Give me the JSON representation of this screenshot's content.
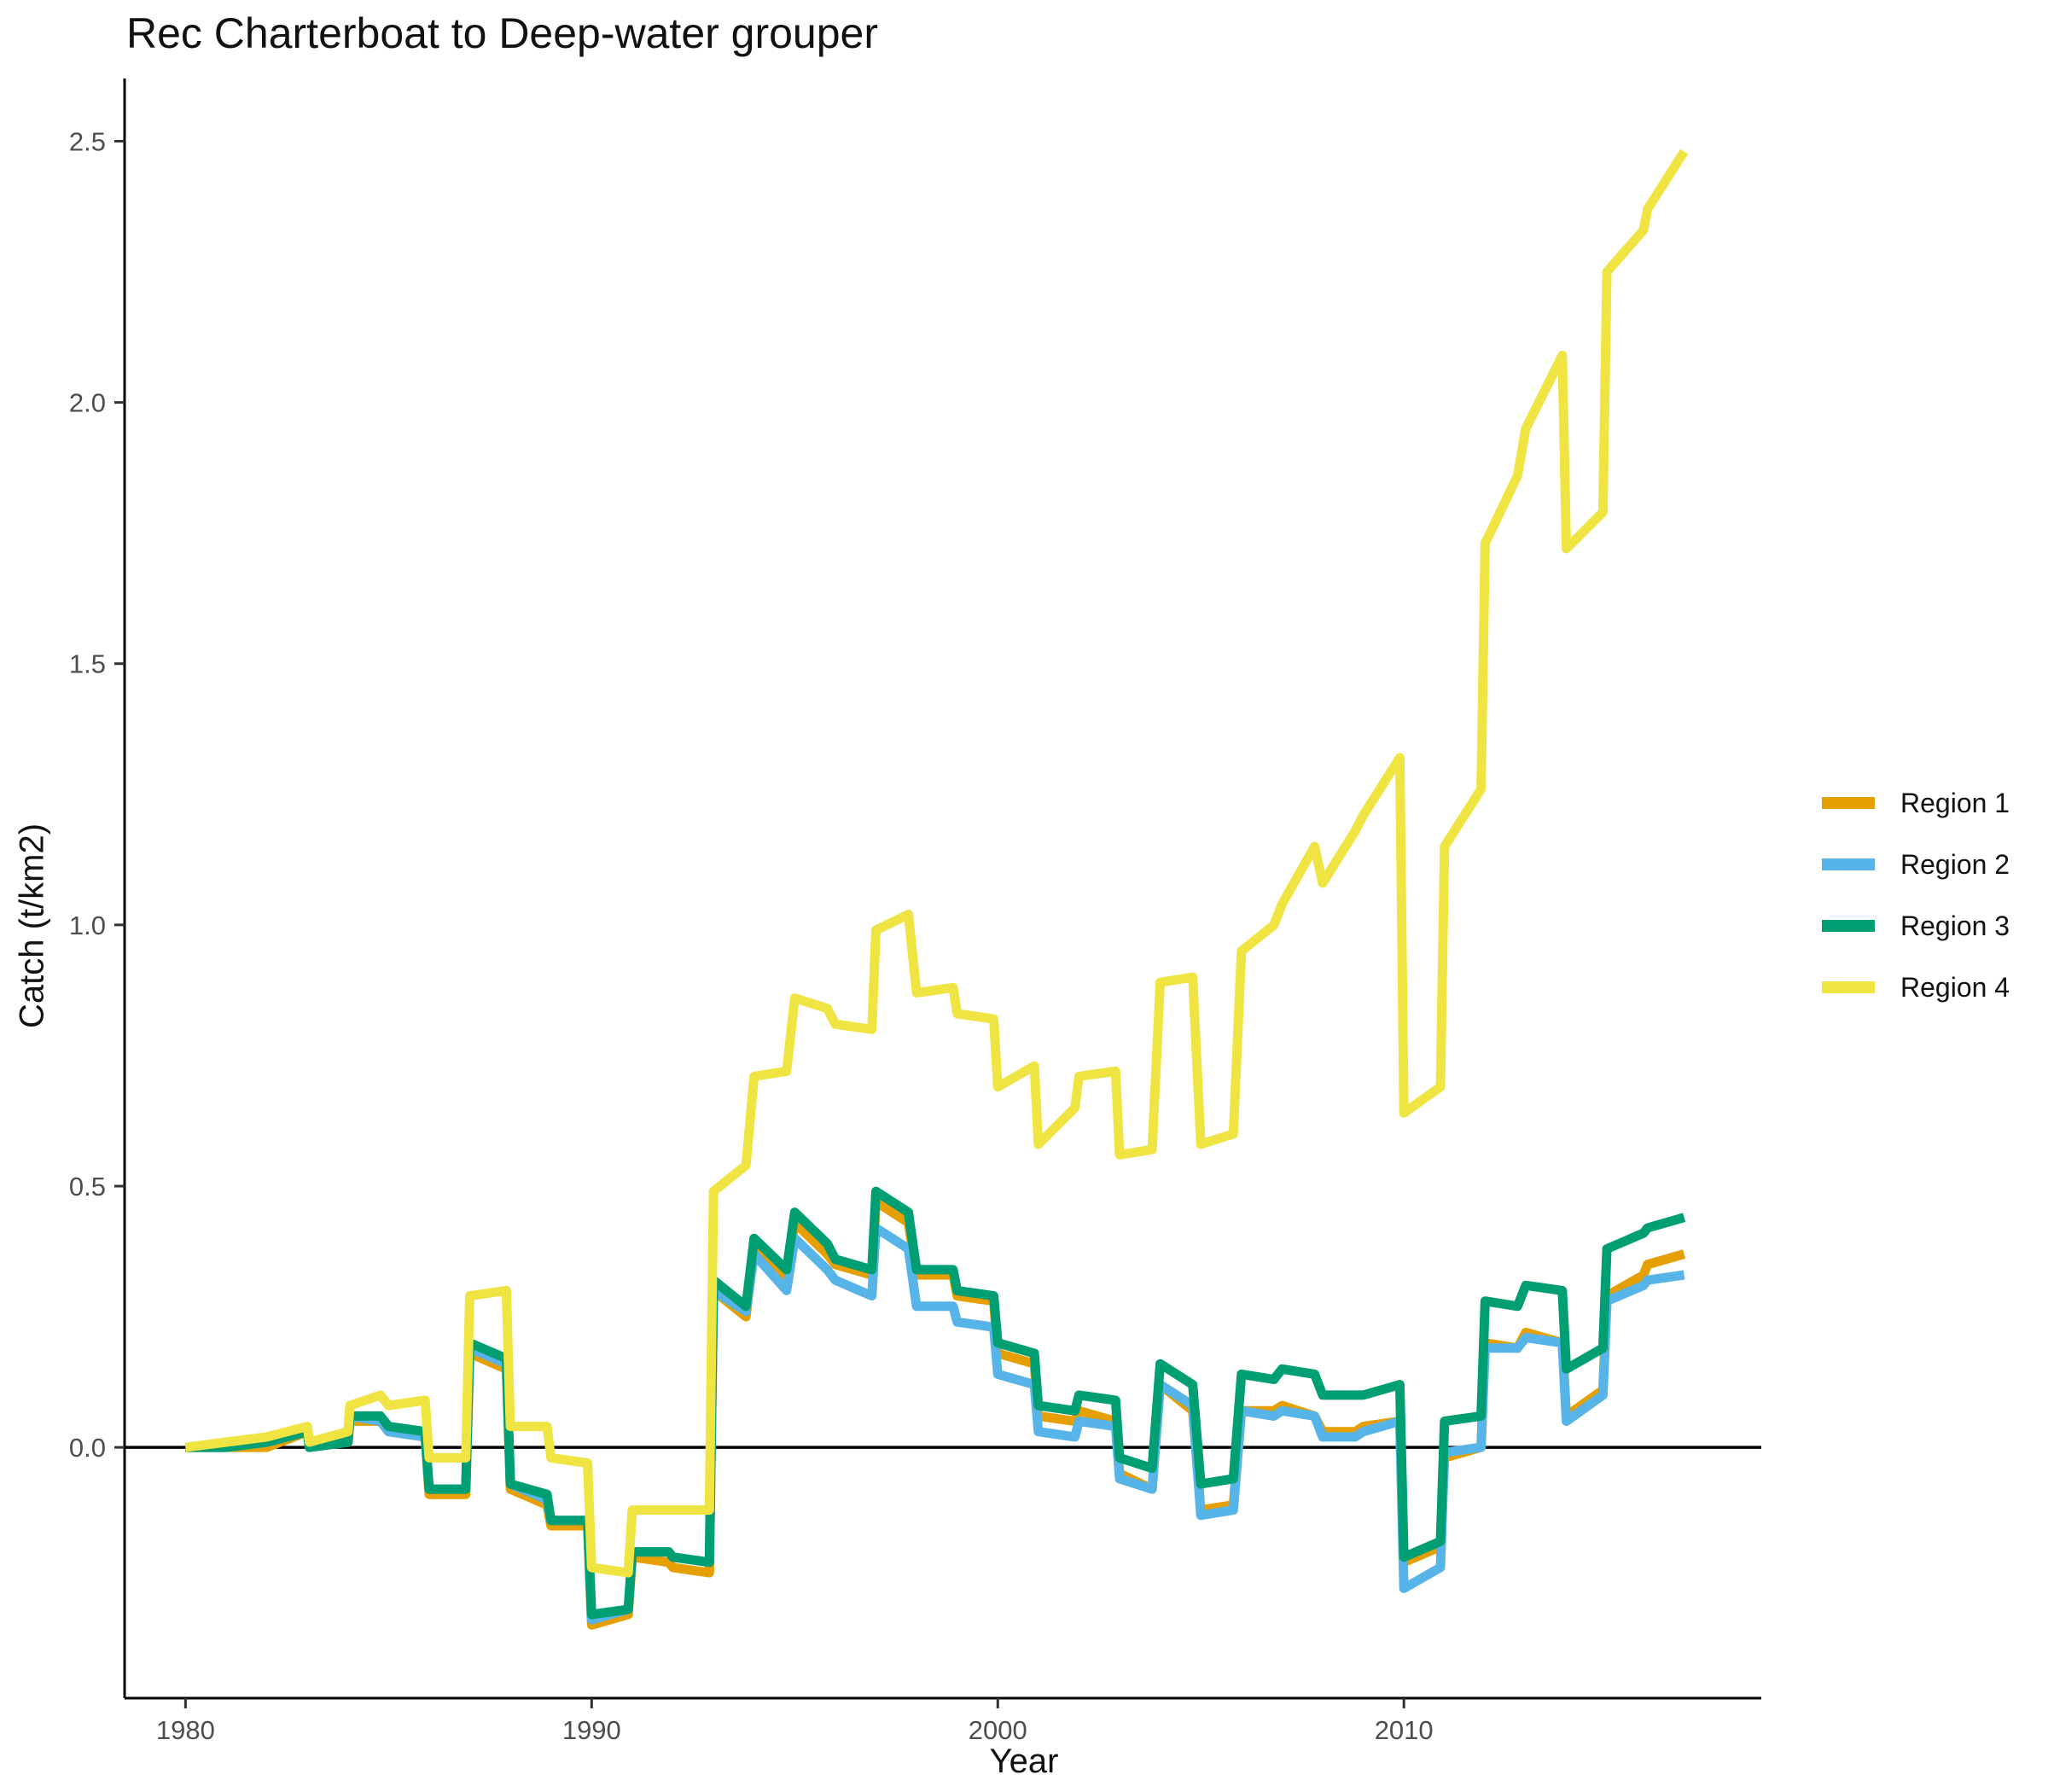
{
  "chart_data": {
    "type": "line",
    "title": "Rec Charterboat to Deep-water grouper",
    "xlabel": "Year",
    "ylabel": "Catch (t/km2)",
    "xlim": [
      1978.5,
      2018.8
    ],
    "ylim": [
      -0.48,
      2.62
    ],
    "xticks": [
      1980,
      1990,
      2000,
      2010
    ],
    "yticks": [
      0.0,
      0.5,
      1.0,
      1.5,
      2.0,
      2.5
    ],
    "ytick_labels": [
      "0.0",
      "0.5",
      "1.0",
      "1.5",
      "2.0",
      "2.5"
    ],
    "zero_line": true,
    "grid": false,
    "legend_position": "right",
    "series": [
      {
        "name": "Region 1",
        "color": "#E69F00",
        "points": [
          [
            1980,
            0.0
          ],
          [
            1981,
            0.0
          ],
          [
            1982,
            0.0
          ],
          [
            1983,
            0.03
          ],
          [
            1983.05,
            0.0
          ],
          [
            1984,
            0.01
          ],
          [
            1984.05,
            0.05
          ],
          [
            1984.8,
            0.05
          ],
          [
            1985,
            0.03
          ],
          [
            1985.9,
            0.02
          ],
          [
            1986,
            -0.09
          ],
          [
            1986.9,
            -0.09
          ],
          [
            1987,
            0.18
          ],
          [
            1987.9,
            0.15
          ],
          [
            1988,
            -0.08
          ],
          [
            1988.9,
            -0.11
          ],
          [
            1989,
            -0.15
          ],
          [
            1989.9,
            -0.15
          ],
          [
            1990,
            -0.34
          ],
          [
            1990.9,
            -0.32
          ],
          [
            1991,
            -0.21
          ],
          [
            1991.9,
            -0.22
          ],
          [
            1992,
            -0.23
          ],
          [
            1992.9,
            -0.24
          ],
          [
            1993,
            0.3
          ],
          [
            1993.8,
            0.25
          ],
          [
            1994,
            0.38
          ],
          [
            1994.8,
            0.32
          ],
          [
            1995,
            0.43
          ],
          [
            1995.8,
            0.37
          ],
          [
            1996,
            0.35
          ],
          [
            1996.9,
            0.33
          ],
          [
            1997,
            0.47
          ],
          [
            1997.8,
            0.43
          ],
          [
            1998,
            0.33
          ],
          [
            1998.9,
            0.33
          ],
          [
            1999,
            0.29
          ],
          [
            1999.9,
            0.28
          ],
          [
            2000,
            0.18
          ],
          [
            2000.9,
            0.16
          ],
          [
            2001,
            0.06
          ],
          [
            2001.9,
            0.05
          ],
          [
            2002,
            0.07
          ],
          [
            2002.9,
            0.05
          ],
          [
            2003,
            -0.05
          ],
          [
            2003.8,
            -0.08
          ],
          [
            2004,
            0.12
          ],
          [
            2004.8,
            0.07
          ],
          [
            2005,
            -0.12
          ],
          [
            2005.8,
            -0.11
          ],
          [
            2006,
            0.07
          ],
          [
            2006.8,
            0.07
          ],
          [
            2007,
            0.08
          ],
          [
            2007.8,
            0.06
          ],
          [
            2008,
            0.03
          ],
          [
            2008.8,
            0.03
          ],
          [
            2009,
            0.04
          ],
          [
            2009.9,
            0.05
          ],
          [
            2010,
            -0.22
          ],
          [
            2010.9,
            -0.19
          ],
          [
            2011,
            -0.02
          ],
          [
            2011.9,
            0.0
          ],
          [
            2012,
            0.2
          ],
          [
            2012.8,
            0.19
          ],
          [
            2013,
            0.22
          ],
          [
            2013.9,
            0.2
          ],
          [
            2014,
            0.06
          ],
          [
            2014.9,
            0.11
          ],
          [
            2015,
            0.29
          ],
          [
            2015.9,
            0.33
          ],
          [
            2016,
            0.35
          ],
          [
            2016.9,
            0.37
          ]
        ]
      },
      {
        "name": "Region 2",
        "color": "#56B4E9",
        "points": [
          [
            1980,
            0.0
          ],
          [
            1981,
            0.0
          ],
          [
            1982,
            0.01
          ],
          [
            1983,
            0.03
          ],
          [
            1983.05,
            0.0
          ],
          [
            1984,
            0.01
          ],
          [
            1984.05,
            0.06
          ],
          [
            1984.8,
            0.05
          ],
          [
            1985,
            0.03
          ],
          [
            1985.9,
            0.02
          ],
          [
            1986,
            -0.08
          ],
          [
            1986.9,
            -0.08
          ],
          [
            1987,
            0.19
          ],
          [
            1987.9,
            0.16
          ],
          [
            1988,
            -0.07
          ],
          [
            1988.9,
            -0.1
          ],
          [
            1989,
            -0.14
          ],
          [
            1989.9,
            -0.14
          ],
          [
            1990,
            -0.33
          ],
          [
            1990.9,
            -0.31
          ],
          [
            1991,
            -0.2
          ],
          [
            1991.9,
            -0.2
          ],
          [
            1992,
            -0.21
          ],
          [
            1992.9,
            -0.22
          ],
          [
            1993,
            0.3
          ],
          [
            1993.8,
            0.26
          ],
          [
            1994,
            0.37
          ],
          [
            1994.8,
            0.3
          ],
          [
            1995,
            0.4
          ],
          [
            1995.8,
            0.34
          ],
          [
            1996,
            0.32
          ],
          [
            1996.9,
            0.29
          ],
          [
            1997,
            0.42
          ],
          [
            1997.8,
            0.38
          ],
          [
            1998,
            0.27
          ],
          [
            1998.9,
            0.27
          ],
          [
            1999,
            0.24
          ],
          [
            1999.9,
            0.23
          ],
          [
            2000,
            0.14
          ],
          [
            2000.9,
            0.12
          ],
          [
            2001,
            0.03
          ],
          [
            2001.9,
            0.02
          ],
          [
            2002,
            0.05
          ],
          [
            2002.9,
            0.04
          ],
          [
            2003,
            -0.06
          ],
          [
            2003.8,
            -0.08
          ],
          [
            2004,
            0.12
          ],
          [
            2004.8,
            0.08
          ],
          [
            2005,
            -0.13
          ],
          [
            2005.8,
            -0.12
          ],
          [
            2006,
            0.07
          ],
          [
            2006.8,
            0.06
          ],
          [
            2007,
            0.07
          ],
          [
            2007.8,
            0.06
          ],
          [
            2008,
            0.02
          ],
          [
            2008.8,
            0.02
          ],
          [
            2009,
            0.03
          ],
          [
            2009.9,
            0.05
          ],
          [
            2010,
            -0.27
          ],
          [
            2010.9,
            -0.23
          ],
          [
            2011,
            -0.01
          ],
          [
            2011.9,
            0.0
          ],
          [
            2012,
            0.19
          ],
          [
            2012.8,
            0.19
          ],
          [
            2013,
            0.21
          ],
          [
            2013.9,
            0.2
          ],
          [
            2014,
            0.05
          ],
          [
            2014.9,
            0.1
          ],
          [
            2015,
            0.28
          ],
          [
            2015.9,
            0.31
          ],
          [
            2016,
            0.32
          ],
          [
            2016.9,
            0.33
          ]
        ]
      },
      {
        "name": "Region 3",
        "color": "#009E73",
        "points": [
          [
            1980,
            0.0
          ],
          [
            1981,
            0.0
          ],
          [
            1982,
            0.01
          ],
          [
            1983,
            0.03
          ],
          [
            1983.05,
            0.0
          ],
          [
            1984,
            0.01
          ],
          [
            1984.05,
            0.06
          ],
          [
            1984.8,
            0.06
          ],
          [
            1985,
            0.04
          ],
          [
            1985.9,
            0.03
          ],
          [
            1986,
            -0.08
          ],
          [
            1986.9,
            -0.08
          ],
          [
            1987,
            0.2
          ],
          [
            1987.9,
            0.17
          ],
          [
            1988,
            -0.07
          ],
          [
            1988.9,
            -0.09
          ],
          [
            1989,
            -0.14
          ],
          [
            1989.9,
            -0.14
          ],
          [
            1990,
            -0.32
          ],
          [
            1990.9,
            -0.31
          ],
          [
            1991,
            -0.2
          ],
          [
            1991.9,
            -0.2
          ],
          [
            1992,
            -0.21
          ],
          [
            1992.9,
            -0.22
          ],
          [
            1993,
            0.32
          ],
          [
            1993.8,
            0.27
          ],
          [
            1994,
            0.4
          ],
          [
            1994.8,
            0.34
          ],
          [
            1995,
            0.45
          ],
          [
            1995.8,
            0.39
          ],
          [
            1996,
            0.36
          ],
          [
            1996.9,
            0.34
          ],
          [
            1997,
            0.49
          ],
          [
            1997.8,
            0.45
          ],
          [
            1998,
            0.34
          ],
          [
            1998.9,
            0.34
          ],
          [
            1999,
            0.3
          ],
          [
            1999.9,
            0.29
          ],
          [
            2000,
            0.2
          ],
          [
            2000.9,
            0.18
          ],
          [
            2001,
            0.08
          ],
          [
            2001.9,
            0.07
          ],
          [
            2002,
            0.1
          ],
          [
            2002.9,
            0.09
          ],
          [
            2003,
            -0.02
          ],
          [
            2003.8,
            -0.04
          ],
          [
            2004,
            0.16
          ],
          [
            2004.8,
            0.12
          ],
          [
            2005,
            -0.07
          ],
          [
            2005.8,
            -0.06
          ],
          [
            2006,
            0.14
          ],
          [
            2006.8,
            0.13
          ],
          [
            2007,
            0.15
          ],
          [
            2007.8,
            0.14
          ],
          [
            2008,
            0.1
          ],
          [
            2008.8,
            0.1
          ],
          [
            2009,
            0.1
          ],
          [
            2009.9,
            0.12
          ],
          [
            2010,
            -0.21
          ],
          [
            2010.9,
            -0.18
          ],
          [
            2011,
            0.05
          ],
          [
            2011.9,
            0.06
          ],
          [
            2012,
            0.28
          ],
          [
            2012.8,
            0.27
          ],
          [
            2013,
            0.31
          ],
          [
            2013.9,
            0.3
          ],
          [
            2014,
            0.15
          ],
          [
            2014.9,
            0.19
          ],
          [
            2015,
            0.38
          ],
          [
            2015.9,
            0.41
          ],
          [
            2016,
            0.42
          ],
          [
            2016.9,
            0.44
          ]
        ]
      },
      {
        "name": "Region 4",
        "color": "#F0E442",
        "points": [
          [
            1980,
            0.0
          ],
          [
            1981,
            0.01
          ],
          [
            1982,
            0.02
          ],
          [
            1983,
            0.04
          ],
          [
            1983.05,
            0.01
          ],
          [
            1984,
            0.03
          ],
          [
            1984.05,
            0.08
          ],
          [
            1984.8,
            0.1
          ],
          [
            1985,
            0.08
          ],
          [
            1985.9,
            0.09
          ],
          [
            1986,
            -0.02
          ],
          [
            1986.9,
            -0.02
          ],
          [
            1987,
            0.29
          ],
          [
            1987.9,
            0.3
          ],
          [
            1988,
            0.04
          ],
          [
            1988.9,
            0.04
          ],
          [
            1989,
            -0.02
          ],
          [
            1989.9,
            -0.03
          ],
          [
            1990,
            -0.23
          ],
          [
            1990.9,
            -0.24
          ],
          [
            1991,
            -0.12
          ],
          [
            1991.9,
            -0.12
          ],
          [
            1992,
            -0.12
          ],
          [
            1992.9,
            -0.12
          ],
          [
            1993,
            0.49
          ],
          [
            1993.8,
            0.54
          ],
          [
            1994,
            0.71
          ],
          [
            1994.8,
            0.72
          ],
          [
            1995,
            0.86
          ],
          [
            1995.8,
            0.84
          ],
          [
            1996,
            0.81
          ],
          [
            1996.9,
            0.8
          ],
          [
            1997,
            0.99
          ],
          [
            1997.8,
            1.02
          ],
          [
            1998,
            0.87
          ],
          [
            1998.9,
            0.88
          ],
          [
            1999,
            0.83
          ],
          [
            1999.9,
            0.82
          ],
          [
            2000,
            0.69
          ],
          [
            2000.9,
            0.73
          ],
          [
            2001,
            0.58
          ],
          [
            2001.9,
            0.65
          ],
          [
            2002,
            0.71
          ],
          [
            2002.9,
            0.72
          ],
          [
            2003,
            0.56
          ],
          [
            2003.8,
            0.57
          ],
          [
            2004,
            0.89
          ],
          [
            2004.8,
            0.9
          ],
          [
            2005,
            0.58
          ],
          [
            2005.8,
            0.6
          ],
          [
            2006,
            0.95
          ],
          [
            2006.8,
            1.0
          ],
          [
            2007,
            1.04
          ],
          [
            2007.8,
            1.15
          ],
          [
            2008,
            1.08
          ],
          [
            2008.8,
            1.18
          ],
          [
            2009,
            1.21
          ],
          [
            2009.9,
            1.32
          ],
          [
            2010,
            0.64
          ],
          [
            2010.9,
            0.69
          ],
          [
            2011,
            1.15
          ],
          [
            2011.9,
            1.26
          ],
          [
            2012,
            1.73
          ],
          [
            2012.8,
            1.86
          ],
          [
            2013,
            1.95
          ],
          [
            2013.9,
            2.09
          ],
          [
            2014,
            1.72
          ],
          [
            2014.9,
            1.79
          ],
          [
            2015,
            2.25
          ],
          [
            2015.9,
            2.33
          ],
          [
            2016,
            2.37
          ],
          [
            2016.9,
            2.48
          ]
        ]
      }
    ]
  }
}
